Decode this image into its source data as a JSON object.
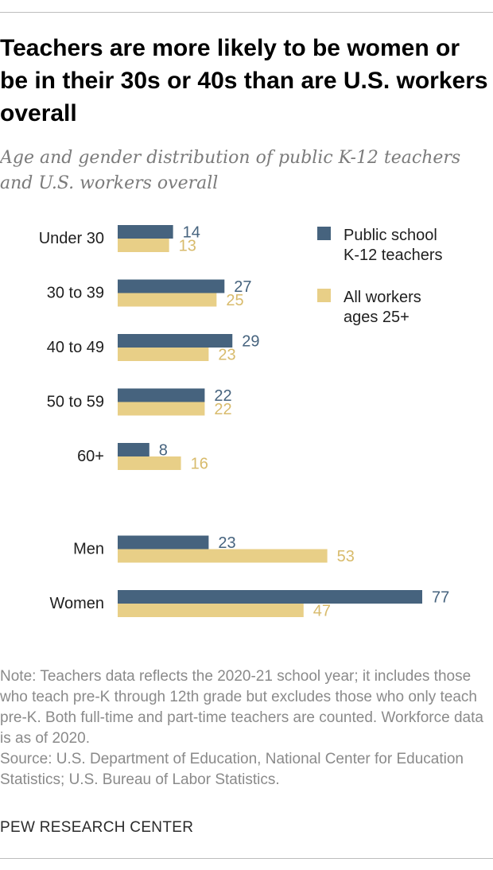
{
  "title": "Teachers are more likely to be women or be in their 30s or 40s than are U.S. workers overall",
  "subtitle": "Age and gender distribution of public K-12 teachers and U.S. workers overall",
  "chart_data": {
    "type": "bar",
    "orientation": "horizontal",
    "categories": [
      "Under 30",
      "30 to 39",
      "40 to 49",
      "50 to 59",
      "60+",
      "Men",
      "Women"
    ],
    "groups": [
      [
        "Under 30",
        "30 to 39",
        "40 to 49",
        "50 to 59",
        "60+"
      ],
      [
        "Men",
        "Women"
      ]
    ],
    "series": [
      {
        "name": "Public school K-12 teachers",
        "legend_lines": [
          "Public school",
          "K-12 teachers"
        ],
        "color": "#46637e",
        "values": [
          14,
          27,
          29,
          22,
          8,
          23,
          77
        ]
      },
      {
        "name": "All workers ages 25+",
        "legend_lines": [
          "All workers",
          "ages 25+"
        ],
        "color": "#e8cf87",
        "label_color": "#d8bb6c",
        "values": [
          13,
          25,
          23,
          22,
          16,
          53,
          47
        ]
      }
    ],
    "legend_position": "top-right",
    "value_labels": true,
    "grid": false,
    "xlim": [
      0,
      77
    ]
  },
  "note": "Note: Teachers data reflects the 2020-21 school year; it includes those who teach pre-K through 12th grade but excludes those who only teach pre-K. Both full-time and part-time teachers are counted. Workforce data is as of 2020.",
  "source": "Source: U.S. Department of Education, National Center for Education Statistics; U.S. Bureau of Labor Statistics.",
  "footer": "PEW RESEARCH CENTER"
}
